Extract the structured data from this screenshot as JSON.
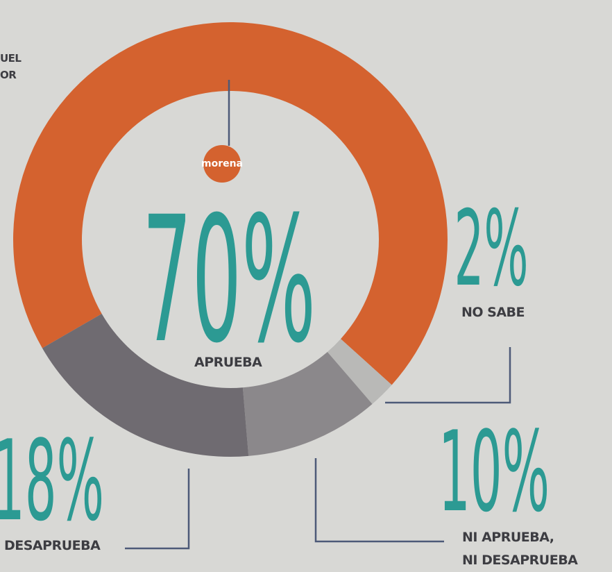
{
  "chart_data": {
    "type": "donut",
    "categories": [
      "APRUEBA",
      "NO SABE",
      "NI APRUEBA,\nNI DESAPRUEBA",
      "DESAPRUEBA"
    ],
    "values": [
      70,
      2,
      10,
      18
    ],
    "value_labels": [
      "70%",
      "2%",
      "10%",
      "18%"
    ],
    "colors": [
      "#d4622f",
      "#b9b9b7",
      "#8b888b",
      "#6f6b71"
    ],
    "logo": "morena",
    "fragments": [
      "UEL",
      "OR"
    ]
  }
}
